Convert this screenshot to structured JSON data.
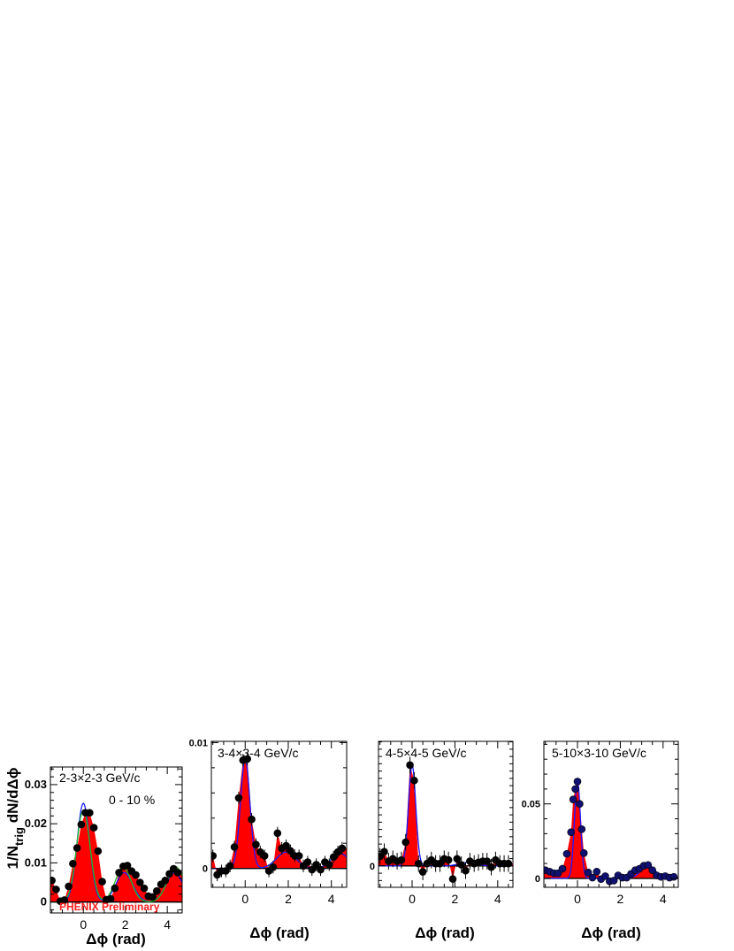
{
  "figure": {
    "ylabel_main": "1/N",
    "ylabel_sub": "trig",
    "ylabel_rest": " dN/dΔϕ",
    "xlabel": "Δϕ (rad)",
    "watermark": "PHENIX Preliminary",
    "colors": {
      "fill": "#ff0000",
      "points": "#000000",
      "fit_blue": "#1a1aff",
      "fit_green": "#22bb22",
      "navy": "#101070"
    }
  },
  "chart_data": [
    {
      "type": "area",
      "title": "2-3×2-3 GeV/c",
      "annotation": "0 - 10 %",
      "xlabel": "Δϕ (rad)",
      "xlim": [
        -1.57,
        4.71
      ],
      "ylim": [
        -0.0028,
        0.0345
      ],
      "yticks": [
        0,
        0.01,
        0.02,
        0.03
      ],
      "ytick_labels": [
        "0",
        "0.01",
        "0.02",
        "0.03"
      ],
      "xticks": [
        0,
        2,
        4
      ],
      "xtick_labels": [
        "0",
        "2",
        "4"
      ],
      "x": [
        -1.5,
        -1.3,
        -1.1,
        -0.9,
        -0.7,
        -0.5,
        -0.3,
        -0.1,
        0.1,
        0.3,
        0.5,
        0.7,
        0.9,
        1.1,
        1.3,
        1.5,
        1.7,
        1.9,
        2.1,
        2.3,
        2.5,
        2.7,
        2.9,
        3.1,
        3.3,
        3.5,
        3.7,
        3.9,
        4.1,
        4.3,
        4.5
      ],
      "y": [
        0.0055,
        0.0032,
        0.0002,
        0.0005,
        0.004,
        0.0098,
        0.0138,
        0.0198,
        0.0228,
        0.0228,
        0.019,
        0.013,
        0.0052,
        0.0006,
        0.0008,
        0.0035,
        0.0075,
        0.0091,
        0.0093,
        0.0079,
        0.0069,
        0.005,
        0.0035,
        0.0015,
        0.0013,
        0.0028,
        0.0045,
        0.0055,
        0.0072,
        0.0085,
        0.0075
      ],
      "err": [
        0.0008,
        0.0008,
        0.0008,
        0.0008,
        0.0008,
        0.0008,
        0.0008,
        0.0008,
        0.0008,
        0.0008,
        0.0008,
        0.0008,
        0.0008,
        0.0008,
        0.0008,
        0.0008,
        0.0008,
        0.0008,
        0.0008,
        0.0008,
        0.0008,
        0.0008,
        0.0008,
        0.0008,
        0.0008,
        0.0008,
        0.0008,
        0.0008,
        0.0008,
        0.0008,
        0.0008
      ],
      "fits": [
        {
          "color": "#1a1aff",
          "A_near": 0.0252,
          "w_near": 0.3,
          "A_away": 0.0075,
          "w_away": 0.4,
          "mu_away": 1.95,
          "A_away2": 0.0075,
          "w_away2": 0.4,
          "mu_away2": 4.35
        },
        {
          "color": "#22bb22",
          "A_near": 0.0235,
          "w_near": 0.32,
          "A_away": 0.0088,
          "w_away": 0.38,
          "mu_away": 1.9,
          "A_away2": 0.009,
          "w_away2": 0.4,
          "mu_away2": 4.4
        }
      ],
      "watermark": "PHENIX Preliminary"
    },
    {
      "type": "area",
      "title": "3-4×3-4 GeV/c",
      "xlabel": "Δϕ (rad)",
      "xlim": [
        -1.57,
        4.71
      ],
      "ylim": [
        -0.0015,
        0.0101
      ],
      "yticks": [
        0,
        0.01
      ],
      "ytick_labels": [
        "0",
        "0.01"
      ],
      "xticks": [
        0,
        2,
        4
      ],
      "xtick_labels": [
        "0",
        "2",
        "4"
      ],
      "x": [
        -1.5,
        -1.3,
        -1.1,
        -0.9,
        -0.7,
        -0.5,
        -0.3,
        -0.1,
        0.1,
        0.3,
        0.5,
        0.7,
        0.9,
        1.1,
        1.3,
        1.5,
        1.7,
        1.9,
        2.1,
        2.3,
        2.5,
        2.7,
        2.9,
        3.1,
        3.3,
        3.5,
        3.7,
        3.9,
        4.1,
        4.3,
        4.5
      ],
      "y": [
        0.001,
        -0.0005,
        -0.0002,
        -0.0002,
        0.0002,
        0.0017,
        0.0056,
        0.0086,
        0.0087,
        0.0039,
        0.0019,
        0.0013,
        0.001,
        -0.0002,
        0.0001,
        0.0028,
        0.0016,
        0.0018,
        0.0014,
        0.001,
        0.001,
        0.0002,
        0.0005,
        -0.0001,
        0.0003,
        -0.0001,
        0.0005,
        0.0003,
        0.0009,
        0.0013,
        0.0016
      ],
      "err": [
        0.0005,
        0.0005,
        0.0005,
        0.0005,
        0.0005,
        0.0005,
        0.0005,
        0.0005,
        0.0005,
        0.0005,
        0.0005,
        0.0005,
        0.0005,
        0.0005,
        0.0005,
        0.0005,
        0.0005,
        0.0005,
        0.0005,
        0.0005,
        0.0005,
        0.0005,
        0.0005,
        0.0005,
        0.0005,
        0.0005,
        0.0005,
        0.0005,
        0.0005,
        0.0005,
        0.0005
      ],
      "fits": [
        {
          "color": "#1a1aff",
          "A_near": 0.0087,
          "w_near": 0.22,
          "A_away": 0.0013,
          "w_away": 0.45,
          "mu_away": 1.9,
          "A_away2": 0.0012,
          "w_away2": 0.4,
          "mu_away2": 4.4
        }
      ]
    },
    {
      "type": "area",
      "title": "4-5×4-5 GeV/c",
      "xlabel": "Δϕ (rad)",
      "xlim": [
        -1.57,
        4.71
      ],
      "ylim": [
        -0.0018,
        0.0105
      ],
      "yticks": [
        0
      ],
      "ytick_labels": [
        "0"
      ],
      "xticks": [
        0,
        2,
        4
      ],
      "xtick_labels": [
        "0",
        "2",
        "4"
      ],
      "x": [
        -1.5,
        -1.3,
        -1.1,
        -0.9,
        -0.7,
        -0.5,
        -0.3,
        -0.1,
        0.1,
        0.3,
        0.5,
        0.7,
        0.9,
        1.1,
        1.3,
        1.5,
        1.7,
        1.9,
        2.1,
        2.3,
        2.5,
        2.7,
        2.9,
        3.1,
        3.3,
        3.5,
        3.7,
        3.9,
        4.1,
        4.3,
        4.5
      ],
      "y": [
        0.0008,
        0.0012,
        0.0004,
        0.0006,
        0.0004,
        0.0005,
        0.002,
        0.0085,
        0.0072,
        0.0002,
        -0.0005,
        0.0002,
        0.0005,
        0.0002,
        0.0002,
        0.0006,
        0.0005,
        -0.0011,
        0.0006,
        0.0001,
        -0.0004,
        0.0004,
        0.0002,
        0.0003,
        0.0004,
        0.0004,
        -0.0001,
        0.0005,
        0.0002,
        0.0002,
        0.0002
      ],
      "err": [
        0.0007,
        0.0007,
        0.0007,
        0.0007,
        0.0007,
        0.0007,
        0.0007,
        0.0007,
        0.0007,
        0.0007,
        0.0007,
        0.0007,
        0.0007,
        0.0007,
        0.0007,
        0.0007,
        0.0007,
        0.0007,
        0.0007,
        0.0007,
        0.0007,
        0.0007,
        0.0007,
        0.0007,
        0.0007,
        0.0007,
        0.0007,
        0.0007,
        0.0007,
        0.0007,
        0.0007
      ],
      "fits": [
        {
          "color": "#1a1aff",
          "A_near": 0.0085,
          "w_near": 0.17,
          "A_away": 0.0003,
          "w_away": 0.4,
          "mu_away": 2.6,
          "A_away2": 0,
          "w_away2": 0.4,
          "mu_away2": 4.4
        }
      ]
    },
    {
      "type": "area",
      "title": "5-10×3-10 GeV/c",
      "xlabel": "Δϕ (rad)",
      "xlim": [
        -1.57,
        4.71
      ],
      "ylim": [
        -0.006,
        0.092
      ],
      "yticks": [
        0,
        0.05
      ],
      "ytick_labels": [
        "0",
        "0.05"
      ],
      "xticks": [
        0,
        2,
        4
      ],
      "xtick_labels": [
        "0",
        "2",
        "4"
      ],
      "x": [
        -1.5,
        -1.3,
        -1.1,
        -0.9,
        -0.7,
        -0.5,
        -0.3,
        -0.2,
        -0.1,
        0.0,
        0.1,
        0.2,
        0.3,
        0.5,
        0.7,
        0.9,
        1.1,
        1.3,
        1.5,
        1.7,
        1.9,
        2.1,
        2.3,
        2.5,
        2.7,
        2.9,
        3.1,
        3.3,
        3.5,
        3.7,
        3.9,
        4.1,
        4.3,
        4.5
      ],
      "y": [
        0.0055,
        0.0045,
        0.0035,
        0.0035,
        0.0065,
        0.0165,
        0.031,
        0.053,
        0.06,
        0.065,
        0.05,
        0.033,
        0.017,
        0.004,
        0.0005,
        0.0045,
        -0.0005,
        0.0015,
        -0.002,
        -0.0015,
        0.002,
        0.0005,
        0.0005,
        0.003,
        0.0055,
        0.0065,
        0.0085,
        0.009,
        0.0055,
        0.002,
        0.001,
        0.0015,
        0.0005,
        0.001
      ],
      "err": [
        0.0015,
        0.0015,
        0.0015,
        0.0015,
        0.0015,
        0.0015,
        0.0015,
        0.0015,
        0.0015,
        0.0015,
        0.0015,
        0.0015,
        0.0015,
        0.0015,
        0.0015,
        0.0015,
        0.0015,
        0.0015,
        0.0015,
        0.0015,
        0.0015,
        0.0015,
        0.0015,
        0.0015,
        0.0015,
        0.0015,
        0.0015,
        0.0015,
        0.0015,
        0.0015,
        0.0015,
        0.0015,
        0.0015,
        0.0015
      ],
      "fits": [
        {
          "color": "#1a1aff",
          "A_near": 0.066,
          "w_near": 0.14,
          "A_away": 0.008,
          "w_away": 0.35,
          "mu_away": 3.3,
          "A_away2": 0,
          "w_away2": 0.4,
          "mu_away2": 4.4
        }
      ]
    }
  ]
}
